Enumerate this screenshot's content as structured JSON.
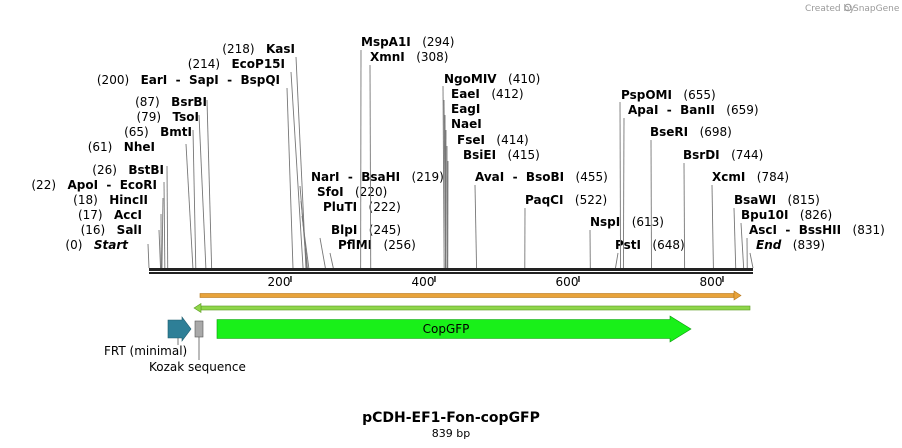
{
  "credit": {
    "prefix": "Created by",
    "brand": "SnapGene"
  },
  "plasmid": {
    "name": "pCDH-EF1-Fon-copGFP",
    "length_label": "839 bp",
    "length": 839
  },
  "ruler": {
    "ticks": [
      "200",
      "400",
      "600",
      "800"
    ]
  },
  "sites": [
    {
      "label": "(0)",
      "name": "Start",
      "italic": true,
      "pos": 0
    },
    {
      "label": "(16)",
      "name": "SalI",
      "pos": 16
    },
    {
      "label": "(17)",
      "name": "AccI",
      "pos": 17
    },
    {
      "label": "(18)",
      "name": "HincII",
      "pos": 18
    },
    {
      "label": "(22)",
      "name": "ApoI  -  EcoRI",
      "pos": 22
    },
    {
      "label": "(26)",
      "name": "BstBI",
      "pos": 26
    },
    {
      "label": "(61)",
      "name": "NheI",
      "pos": 61
    },
    {
      "label": "(65)",
      "name": "BmtI",
      "pos": 65
    },
    {
      "label": "(79)",
      "name": "TsoI",
      "pos": 79
    },
    {
      "label": "(87)",
      "name": "BsrBI",
      "pos": 87
    },
    {
      "label": "(200)",
      "name": "EarI  -  SapI  -  BspQI",
      "pos": 200
    },
    {
      "label": "(214)",
      "name": "EcoP15I",
      "pos": 214
    },
    {
      "label": "(218)",
      "name": "KasI",
      "pos": 218
    },
    {
      "label": "(219)",
      "name": "NarI  -  BsaHI",
      "pos": 219,
      "right": true
    },
    {
      "label": "(220)",
      "name": "SfoI",
      "pos": 220,
      "right": true
    },
    {
      "label": "(222)",
      "name": "PluTI",
      "pos": 222,
      "right": true
    },
    {
      "label": "(245)",
      "name": "BlpI",
      "pos": 245,
      "right": true
    },
    {
      "label": "(256)",
      "name": "PflMI",
      "pos": 256,
      "right": true
    },
    {
      "label": "(294)",
      "name": "MspA1I",
      "pos": 294,
      "right": true
    },
    {
      "label": "(308)",
      "name": "XmnI",
      "pos": 308,
      "right": true
    },
    {
      "label": "(410)",
      "name": "NgoMIV",
      "pos": 410,
      "right": true
    },
    {
      "label": "(412)",
      "name": "EaeI",
      "pos": 412,
      "right": true
    },
    {
      "label": "",
      "name": "EagI",
      "pos": 412,
      "right": true
    },
    {
      "label": "",
      "name": "NaeI",
      "pos": 412,
      "right": true
    },
    {
      "label": "(414)",
      "name": "FseI",
      "pos": 414,
      "right": true
    },
    {
      "label": "(415)",
      "name": "BsiEI",
      "pos": 415,
      "right": true
    },
    {
      "label": "(455)",
      "name": "AvaI  -  BsoBI",
      "pos": 455,
      "right": true
    },
    {
      "label": "(522)",
      "name": "PaqCI",
      "pos": 522,
      "right": true
    },
    {
      "label": "(613)",
      "name": "NspI",
      "pos": 613,
      "right": true
    },
    {
      "label": "(648)",
      "name": "PstI",
      "pos": 648,
      "right": true
    },
    {
      "label": "(655)",
      "name": "PspOMI",
      "pos": 655,
      "right": true
    },
    {
      "label": "(659)",
      "name": "ApaI  -  BanII",
      "pos": 659,
      "right": true
    },
    {
      "label": "(698)",
      "name": "BseRI",
      "pos": 698,
      "right": true
    },
    {
      "label": "(744)",
      "name": "BsrDI",
      "pos": 744,
      "right": true
    },
    {
      "label": "(784)",
      "name": "XcmI",
      "pos": 784,
      "right": true
    },
    {
      "label": "(815)",
      "name": "BsaWI",
      "pos": 815,
      "right": true
    },
    {
      "label": "(826)",
      "name": "Bpu10I",
      "pos": 826,
      "right": true
    },
    {
      "label": "(831)",
      "name": "AscI  -  BssHII",
      "pos": 831,
      "right": true
    },
    {
      "label": "(839)",
      "name": "End",
      "italic": true,
      "pos": 839,
      "right": true
    }
  ],
  "features": [
    {
      "name": "FRT (minimal)",
      "color": "#2e7f97",
      "type": "arrow"
    },
    {
      "name": "Kozak sequence",
      "color": "#a9a9a9",
      "type": "box"
    },
    {
      "name": "CopGFP",
      "color": "#19f019",
      "type": "arrow"
    }
  ],
  "colors": {
    "backbone": "#222222",
    "orf_fwd": "#e8a33a",
    "orf_rev": "#8fd64a"
  }
}
